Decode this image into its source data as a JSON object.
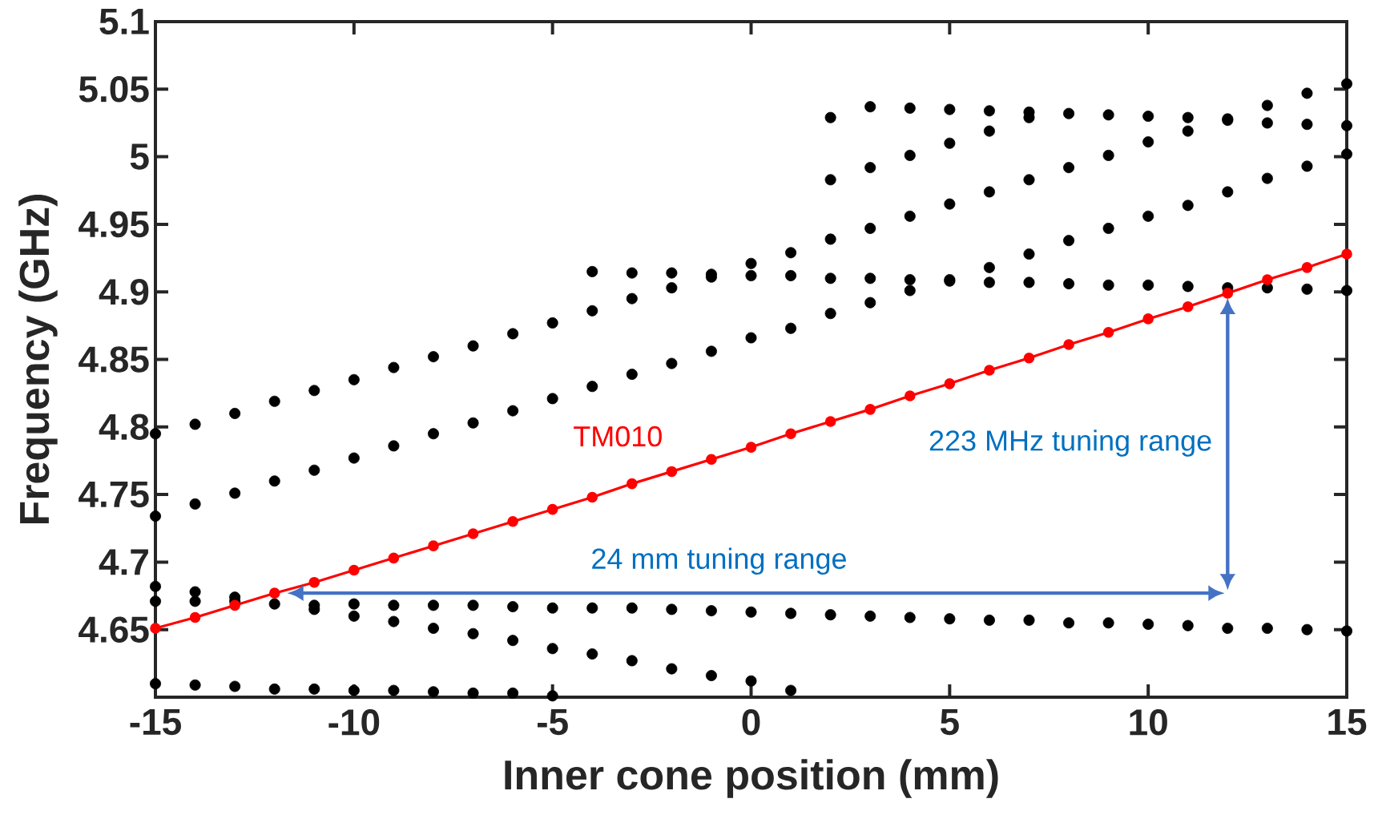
{
  "chart_data": {
    "type": "scatter",
    "xlabel": "Inner cone position (mm)",
    "ylabel": "Frequency (GHz)",
    "xlim": [
      -15,
      15
    ],
    "ylim": [
      4.6,
      5.1
    ],
    "xticks": [
      -15,
      -10,
      -5,
      0,
      5,
      10,
      15
    ],
    "yticks": [
      4.65,
      4.7,
      4.75,
      4.8,
      4.85,
      4.9,
      4.95,
      5,
      5.05,
      5.1
    ],
    "grid": false,
    "marker": "circle",
    "series": [
      {
        "color": "#000000",
        "x": [
          -15,
          -15,
          -15,
          -15,
          -15,
          -14,
          -14,
          -14,
          -14,
          -14,
          -13,
          -13,
          -13,
          -13,
          -13,
          -12,
          -12,
          -12,
          -12,
          -11,
          -11,
          -11,
          -11,
          -11,
          -10,
          -10,
          -10,
          -10,
          -10,
          -9,
          -9,
          -9,
          -9,
          -9,
          -8,
          -8,
          -8,
          -8,
          -8,
          -7,
          -7,
          -7,
          -7,
          -7,
          -6,
          -6,
          -6,
          -6,
          -6,
          -5,
          -5,
          -5,
          -5,
          -5,
          -4,
          -4,
          -4,
          -4,
          -4,
          -3,
          -3,
          -3,
          -3,
          -3,
          -2,
          -2,
          -2,
          -2,
          -2,
          -1,
          -1,
          -1,
          -1,
          -1,
          0,
          0,
          0,
          0,
          0,
          1,
          1,
          1,
          1,
          1,
          2,
          2,
          2,
          2,
          2,
          2,
          3,
          3,
          3,
          3,
          3,
          3,
          4,
          4,
          4,
          4,
          4,
          4,
          5,
          5,
          5,
          5,
          5,
          5,
          6,
          6,
          6,
          6,
          6,
          6,
          7,
          7,
          7,
          7,
          7,
          7,
          8,
          8,
          8,
          8,
          8,
          9,
          9,
          9,
          9,
          9,
          10,
          10,
          10,
          10,
          10,
          11,
          11,
          11,
          11,
          11,
          12,
          12,
          12,
          12,
          12,
          13,
          13,
          13,
          13,
          13,
          14,
          14,
          14,
          14,
          14,
          15,
          15,
          15,
          15,
          15
        ],
        "values": [
          4.795,
          4.734,
          4.682,
          4.671,
          4.61,
          4.802,
          4.743,
          4.678,
          4.671,
          4.609,
          4.81,
          4.751,
          4.674,
          4.671,
          4.608,
          4.819,
          4.76,
          4.669,
          4.606,
          4.827,
          4.768,
          4.668,
          4.665,
          4.606,
          4.835,
          4.777,
          4.669,
          4.66,
          4.605,
          4.844,
          4.786,
          4.668,
          4.656,
          4.605,
          4.852,
          4.795,
          4.668,
          4.651,
          4.604,
          4.86,
          4.803,
          4.668,
          4.647,
          4.603,
          4.869,
          4.812,
          4.667,
          4.642,
          4.603,
          4.877,
          4.821,
          4.666,
          4.636,
          4.601,
          4.915,
          4.886,
          4.83,
          4.666,
          4.632,
          4.914,
          4.895,
          4.839,
          4.666,
          4.627,
          4.914,
          4.903,
          4.847,
          4.665,
          4.621,
          4.913,
          4.911,
          4.856,
          4.664,
          4.616,
          4.921,
          4.912,
          4.866,
          4.663,
          4.612,
          4.929,
          4.912,
          4.873,
          4.662,
          4.605,
          5.029,
          4.983,
          4.939,
          4.91,
          4.884,
          4.661,
          5.037,
          4.992,
          4.947,
          4.91,
          4.892,
          4.66,
          5.036,
          5.001,
          4.956,
          4.909,
          4.901,
          4.659,
          5.035,
          5.01,
          4.965,
          4.909,
          4.908,
          4.658,
          5.034,
          5.019,
          4.974,
          4.918,
          4.907,
          4.657,
          5.033,
          5.029,
          4.983,
          4.928,
          4.907,
          4.657,
          5.032,
          4.992,
          4.938,
          4.906,
          4.655,
          5.031,
          5.001,
          4.947,
          4.905,
          4.655,
          5.03,
          5.011,
          4.956,
          4.905,
          4.654,
          5.029,
          5.019,
          4.964,
          4.904,
          4.653,
          5.028,
          5.027,
          4.974,
          4.903,
          4.651,
          5.038,
          5.025,
          4.984,
          4.903,
          4.651,
          5.047,
          5.024,
          4.993,
          4.902,
          4.65,
          5.054,
          5.023,
          5.002,
          4.901,
          4.649
        ]
      },
      {
        "type": "line",
        "name": "TM010",
        "color": "#ff0000",
        "line_style": "solid",
        "x": [
          -15,
          -14,
          -13,
          -12,
          -11,
          -10,
          -9,
          -8,
          -7,
          -6,
          -5,
          -4,
          -3,
          -2,
          -1,
          0,
          1,
          2,
          3,
          4,
          5,
          6,
          7,
          8,
          9,
          10,
          11,
          12,
          13,
          14,
          15
        ],
        "values": [
          4.651,
          4.659,
          4.668,
          4.677,
          4.685,
          4.694,
          4.703,
          4.712,
          4.721,
          4.73,
          4.739,
          4.748,
          4.758,
          4.767,
          4.776,
          4.785,
          4.795,
          4.804,
          4.813,
          4.823,
          4.832,
          4.842,
          4.851,
          4.861,
          4.87,
          4.88,
          4.889,
          4.899,
          4.909,
          4.918,
          4.928
        ]
      }
    ],
    "annotations": [
      "24 mm tuning range",
      "223 MHz tuning range"
    ]
  }
}
